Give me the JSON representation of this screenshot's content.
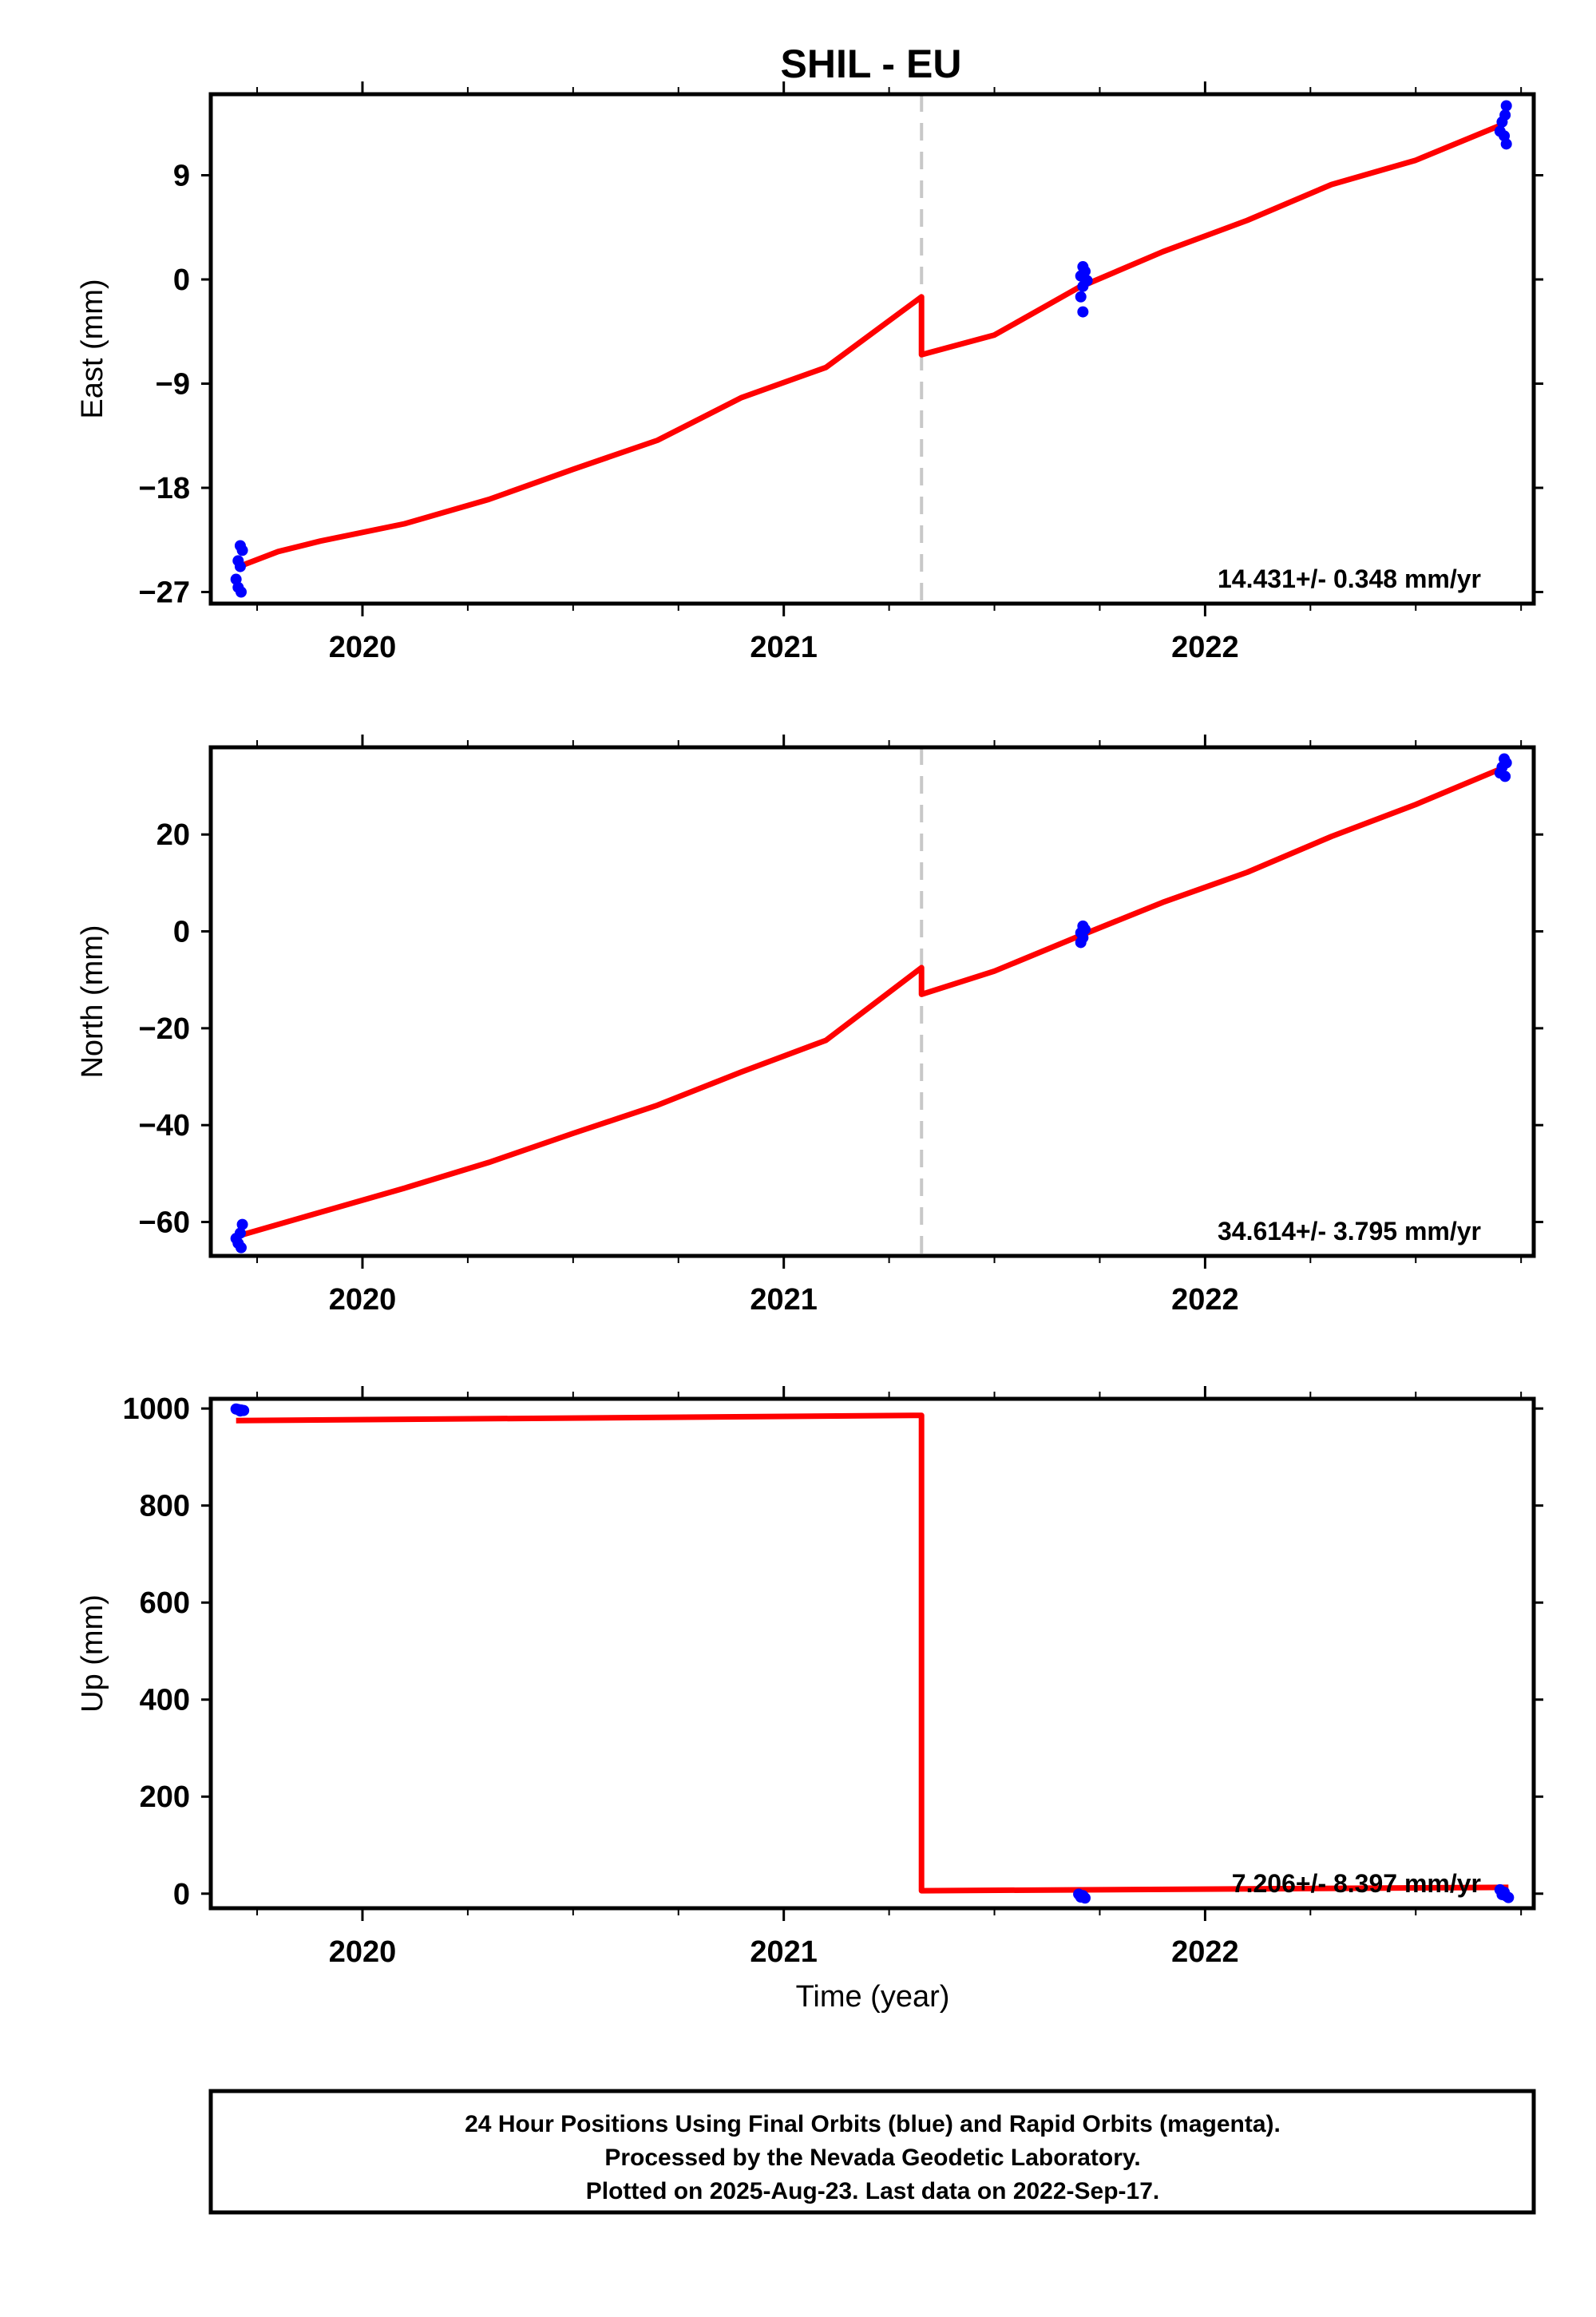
{
  "chart_data": {
    "title": "SHIL - EU",
    "type": "scatter",
    "x_range": [
      2019.64,
      2022.78
    ],
    "offset_epoch": 2021.327,
    "x_ticks": [
      2020,
      2021,
      2022
    ],
    "xlabel": "Time (year)",
    "colors": {
      "data": "#0000ff",
      "model": "#ff0000",
      "offset_line": "#c8c8c8"
    },
    "panels": [
      {
        "id": "east",
        "ylabel": "East (mm)",
        "ylim": [
          -28,
          16
        ],
        "yticks": [
          -27,
          -18,
          -9,
          0,
          9
        ],
        "rate": "14.431+/- 0.348 mm/yr",
        "model": [
          [
            2019.7,
            -24.9
          ],
          [
            2019.8,
            -23.5
          ],
          [
            2019.9,
            -22.6
          ],
          [
            2020.1,
            -21.1
          ],
          [
            2020.3,
            -19.0
          ],
          [
            2020.5,
            -16.4
          ],
          [
            2020.7,
            -13.9
          ],
          [
            2020.9,
            -10.2
          ],
          [
            2021.1,
            -7.6
          ],
          [
            2021.327,
            -1.5
          ],
          [
            2021.327,
            -6.5
          ],
          [
            2021.5,
            -4.8
          ],
          [
            2021.7,
            -0.7
          ],
          [
            2021.9,
            2.4
          ],
          [
            2022.1,
            5.1
          ],
          [
            2022.3,
            8.2
          ],
          [
            2022.5,
            10.3
          ],
          [
            2022.7,
            13.3
          ]
        ],
        "points": [
          [
            2019.71,
            -23.0
          ],
          [
            2019.715,
            -23.4
          ],
          [
            2019.705,
            -24.3
          ],
          [
            2019.71,
            -24.8
          ],
          [
            2019.7,
            -25.9
          ],
          [
            2019.705,
            -26.6
          ],
          [
            2019.712,
            -27.0
          ],
          [
            2021.71,
            1.1
          ],
          [
            2021.715,
            0.7
          ],
          [
            2021.705,
            0.3
          ],
          [
            2021.72,
            -0.1
          ],
          [
            2021.71,
            -0.6
          ],
          [
            2021.705,
            -1.5
          ],
          [
            2021.71,
            -2.8
          ],
          [
            2022.715,
            15.0
          ],
          [
            2022.712,
            14.2
          ],
          [
            2022.705,
            13.6
          ],
          [
            2022.7,
            12.8
          ],
          [
            2022.71,
            12.4
          ],
          [
            2022.715,
            11.7
          ]
        ]
      },
      {
        "id": "north",
        "ylabel": "North (mm)",
        "ylim": [
          -67,
          38
        ],
        "yticks": [
          -60,
          -40,
          -20,
          0,
          20
        ],
        "rate": "34.614+/- 3.795 mm/yr",
        "model": [
          [
            2019.7,
            -63.0
          ],
          [
            2019.9,
            -58.0
          ],
          [
            2020.1,
            -53.0
          ],
          [
            2020.3,
            -47.7
          ],
          [
            2020.5,
            -41.7
          ],
          [
            2020.7,
            -35.9
          ],
          [
            2020.9,
            -29.0
          ],
          [
            2021.1,
            -22.5
          ],
          [
            2021.327,
            -7.5
          ],
          [
            2021.327,
            -13.0
          ],
          [
            2021.5,
            -8.2
          ],
          [
            2021.7,
            -1.0
          ],
          [
            2021.9,
            6.0
          ],
          [
            2022.1,
            12.2
          ],
          [
            2022.3,
            19.6
          ],
          [
            2022.5,
            26.2
          ],
          [
            2022.7,
            33.5
          ]
        ],
        "points": [
          [
            2019.715,
            -60.5
          ],
          [
            2019.71,
            -62.3
          ],
          [
            2019.7,
            -63.4
          ],
          [
            2019.705,
            -64.4
          ],
          [
            2019.712,
            -65.3
          ],
          [
            2021.71,
            1.1
          ],
          [
            2021.715,
            0.4
          ],
          [
            2021.705,
            -0.3
          ],
          [
            2021.71,
            -1.3
          ],
          [
            2021.705,
            -2.3
          ],
          [
            2022.71,
            35.6
          ],
          [
            2022.715,
            34.8
          ],
          [
            2022.705,
            33.9
          ],
          [
            2022.7,
            32.7
          ],
          [
            2022.712,
            32.0
          ]
        ]
      },
      {
        "id": "up",
        "ylabel": "Up (mm)",
        "ylim": [
          -30,
          1020
        ],
        "yticks": [
          0,
          200,
          400,
          600,
          800,
          1000
        ],
        "rate": "7.206+/- 8.397 mm/yr",
        "model": [
          [
            2019.7,
            975
          ],
          [
            2021.327,
            986
          ],
          [
            2021.327,
            6
          ],
          [
            2022.72,
            13
          ]
        ],
        "points": [
          [
            2019.7,
            999
          ],
          [
            2019.705,
            998
          ],
          [
            2019.712,
            997
          ],
          [
            2019.718,
            996
          ],
          [
            2019.71,
            995
          ],
          [
            2021.7,
            -1
          ],
          [
            2021.71,
            -4
          ],
          [
            2021.705,
            -7
          ],
          [
            2021.715,
            -9
          ],
          [
            2022.7,
            8
          ],
          [
            2022.71,
            3
          ],
          [
            2022.705,
            -2
          ],
          [
            2022.715,
            -5
          ],
          [
            2022.72,
            -8
          ]
        ]
      }
    ]
  },
  "footer": {
    "line1": "24 Hour Positions Using Final Orbits (blue) and Rapid Orbits (magenta).",
    "line2": "Processed by the Nevada Geodetic Laboratory.",
    "line3": "Plotted on 2025-Aug-23. Last data on 2022-Sep-17."
  }
}
